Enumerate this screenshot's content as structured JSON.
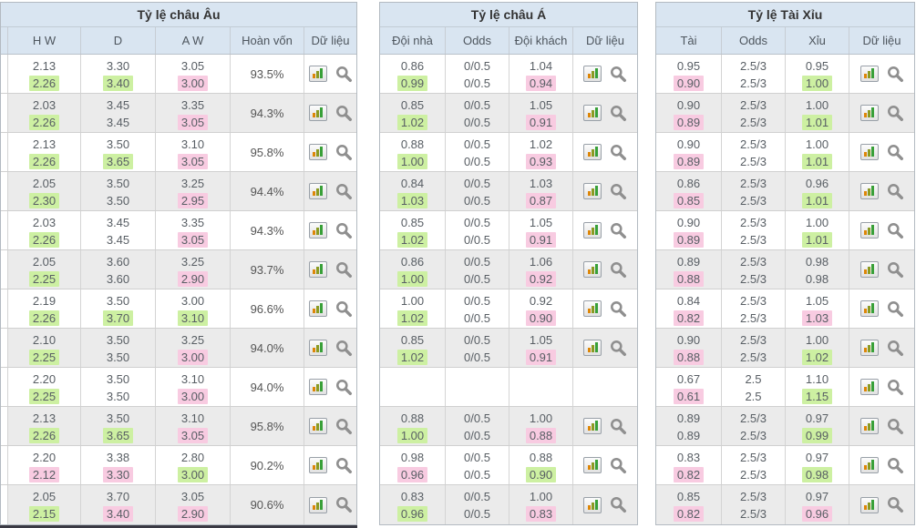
{
  "colors": {
    "header_bg": "#d9e5f1",
    "green_highlight": "#cdf0a2",
    "pink_highlight": "#f8cbe1",
    "zebra_row": "#ebebeb",
    "footer_bar": "#3a3a44"
  },
  "icons": {
    "chart": "bar-chart-icon",
    "search": "magnifier-icon"
  },
  "tables": [
    {
      "title": "Tỷ lệ châu Âu",
      "columns": [
        "",
        "H W",
        "D",
        "A W",
        "Hoàn vốn",
        "Dữ liệu"
      ],
      "rows": [
        {
          "odds": [
            [
              "2.13",
              "2.26",
              "g"
            ],
            [
              "3.30",
              "3.40",
              "g"
            ],
            [
              "3.05",
              "3.00",
              "p"
            ]
          ],
          "payout": "93.5%",
          "empty": false
        },
        {
          "odds": [
            [
              "2.03",
              "2.26",
              "g"
            ],
            [
              "3.45",
              "3.45",
              "n"
            ],
            [
              "3.35",
              "3.05",
              "p"
            ]
          ],
          "payout": "94.3%",
          "empty": false
        },
        {
          "odds": [
            [
              "2.13",
              "2.26",
              "g"
            ],
            [
              "3.50",
              "3.65",
              "g"
            ],
            [
              "3.10",
              "3.05",
              "p"
            ]
          ],
          "payout": "95.8%",
          "empty": false
        },
        {
          "odds": [
            [
              "2.05",
              "2.30",
              "g"
            ],
            [
              "3.50",
              "3.50",
              "n"
            ],
            [
              "3.25",
              "2.95",
              "p"
            ]
          ],
          "payout": "94.4%",
          "empty": false
        },
        {
          "odds": [
            [
              "2.03",
              "2.26",
              "g"
            ],
            [
              "3.45",
              "3.45",
              "n"
            ],
            [
              "3.35",
              "3.05",
              "p"
            ]
          ],
          "payout": "94.3%",
          "empty": false
        },
        {
          "odds": [
            [
              "2.05",
              "2.25",
              "g"
            ],
            [
              "3.60",
              "3.60",
              "n"
            ],
            [
              "3.25",
              "2.90",
              "p"
            ]
          ],
          "payout": "93.7%",
          "empty": false
        },
        {
          "odds": [
            [
              "2.19",
              "2.26",
              "g"
            ],
            [
              "3.50",
              "3.70",
              "g"
            ],
            [
              "3.00",
              "3.10",
              "g"
            ]
          ],
          "payout": "96.6%",
          "empty": false
        },
        {
          "odds": [
            [
              "2.10",
              "2.25",
              "g"
            ],
            [
              "3.50",
              "3.50",
              "n"
            ],
            [
              "3.25",
              "3.00",
              "p"
            ]
          ],
          "payout": "94.0%",
          "empty": false
        },
        {
          "odds": [
            [
              "2.20",
              "2.25",
              "g"
            ],
            [
              "3.50",
              "3.50",
              "n"
            ],
            [
              "3.10",
              "3.00",
              "p"
            ]
          ],
          "payout": "94.0%",
          "empty": false
        },
        {
          "odds": [
            [
              "2.13",
              "2.26",
              "g"
            ],
            [
              "3.50",
              "3.65",
              "g"
            ],
            [
              "3.10",
              "3.05",
              "p"
            ]
          ],
          "payout": "95.8%",
          "empty": false
        },
        {
          "odds": [
            [
              "2.20",
              "2.12",
              "p"
            ],
            [
              "3.38",
              "3.30",
              "p"
            ],
            [
              "2.80",
              "3.00",
              "g"
            ]
          ],
          "payout": "90.2%",
          "empty": false
        },
        {
          "odds": [
            [
              "2.05",
              "2.15",
              "g"
            ],
            [
              "3.70",
              "3.40",
              "p"
            ],
            [
              "3.05",
              "2.90",
              "p"
            ]
          ],
          "payout": "90.6%",
          "empty": false
        }
      ]
    },
    {
      "title": "Tỷ lệ châu Á",
      "columns": [
        "Đội nhà",
        "Odds",
        "Đội khách",
        "Dữ liệu"
      ],
      "rows": [
        {
          "odds": [
            [
              "0.86",
              "0.99",
              "g"
            ],
            [
              "0/0.5",
              "0/0.5",
              "n"
            ],
            [
              "1.04",
              "0.94",
              "p"
            ]
          ],
          "empty": false
        },
        {
          "odds": [
            [
              "0.85",
              "1.02",
              "g"
            ],
            [
              "0/0.5",
              "0/0.5",
              "n"
            ],
            [
              "1.05",
              "0.91",
              "p"
            ]
          ],
          "empty": false
        },
        {
          "odds": [
            [
              "0.88",
              "1.00",
              "g"
            ],
            [
              "0/0.5",
              "0/0.5",
              "n"
            ],
            [
              "1.02",
              "0.93",
              "p"
            ]
          ],
          "empty": false
        },
        {
          "odds": [
            [
              "0.84",
              "1.03",
              "g"
            ],
            [
              "0/0.5",
              "0/0.5",
              "n"
            ],
            [
              "1.03",
              "0.87",
              "p"
            ]
          ],
          "empty": false
        },
        {
          "odds": [
            [
              "0.85",
              "1.02",
              "g"
            ],
            [
              "0/0.5",
              "0/0.5",
              "n"
            ],
            [
              "1.05",
              "0.91",
              "p"
            ]
          ],
          "empty": false
        },
        {
          "odds": [
            [
              "0.86",
              "1.00",
              "g"
            ],
            [
              "0/0.5",
              "0/0.5",
              "n"
            ],
            [
              "1.06",
              "0.92",
              "p"
            ]
          ],
          "empty": false
        },
        {
          "odds": [
            [
              "1.00",
              "1.02",
              "g"
            ],
            [
              "0/0.5",
              "0/0.5",
              "n"
            ],
            [
              "0.92",
              "0.90",
              "p"
            ]
          ],
          "empty": false
        },
        {
          "odds": [
            [
              "0.85",
              "1.02",
              "g"
            ],
            [
              "0/0.5",
              "0/0.5",
              "n"
            ],
            [
              "1.05",
              "0.91",
              "p"
            ]
          ],
          "empty": false
        },
        {
          "odds": [],
          "empty": true
        },
        {
          "odds": [
            [
              "0.88",
              "1.00",
              "g"
            ],
            [
              "0/0.5",
              "0/0.5",
              "n"
            ],
            [
              "1.00",
              "0.88",
              "p"
            ]
          ],
          "empty": false
        },
        {
          "odds": [
            [
              "0.98",
              "0.96",
              "p"
            ],
            [
              "0/0.5",
              "0/0.5",
              "n"
            ],
            [
              "0.88",
              "0.90",
              "g"
            ]
          ],
          "empty": false
        },
        {
          "odds": [
            [
              "0.83",
              "0.96",
              "g"
            ],
            [
              "0/0.5",
              "0/0.5",
              "n"
            ],
            [
              "1.00",
              "0.83",
              "p"
            ]
          ],
          "empty": false
        }
      ]
    },
    {
      "title": "Tỷ lệ Tài Xỉu",
      "columns": [
        "Tài",
        "Odds",
        "Xỉu",
        "Dữ liệu"
      ],
      "rows": [
        {
          "odds": [
            [
              "0.95",
              "0.90",
              "p"
            ],
            [
              "2.5/3",
              "2.5/3",
              "n"
            ],
            [
              "0.95",
              "1.00",
              "g"
            ]
          ],
          "empty": false
        },
        {
          "odds": [
            [
              "0.90",
              "0.89",
              "p"
            ],
            [
              "2.5/3",
              "2.5/3",
              "n"
            ],
            [
              "1.00",
              "1.01",
              "g"
            ]
          ],
          "empty": false
        },
        {
          "odds": [
            [
              "0.90",
              "0.89",
              "p"
            ],
            [
              "2.5/3",
              "2.5/3",
              "n"
            ],
            [
              "1.00",
              "1.01",
              "g"
            ]
          ],
          "empty": false
        },
        {
          "odds": [
            [
              "0.86",
              "0.85",
              "p"
            ],
            [
              "2.5/3",
              "2.5/3",
              "n"
            ],
            [
              "0.96",
              "1.01",
              "g"
            ]
          ],
          "empty": false
        },
        {
          "odds": [
            [
              "0.90",
              "0.89",
              "p"
            ],
            [
              "2.5/3",
              "2.5/3",
              "n"
            ],
            [
              "1.00",
              "1.01",
              "g"
            ]
          ],
          "empty": false
        },
        {
          "odds": [
            [
              "0.89",
              "0.88",
              "p"
            ],
            [
              "2.5/3",
              "2.5/3",
              "n"
            ],
            [
              "0.98",
              "0.98",
              "n"
            ]
          ],
          "empty": false
        },
        {
          "odds": [
            [
              "0.84",
              "0.82",
              "p"
            ],
            [
              "2.5/3",
              "2.5/3",
              "n"
            ],
            [
              "1.05",
              "1.03",
              "p"
            ]
          ],
          "empty": false
        },
        {
          "odds": [
            [
              "0.90",
              "0.88",
              "p"
            ],
            [
              "2.5/3",
              "2.5/3",
              "n"
            ],
            [
              "1.00",
              "1.02",
              "g"
            ]
          ],
          "empty": false
        },
        {
          "odds": [
            [
              "0.67",
              "0.61",
              "p"
            ],
            [
              "2.5",
              "2.5",
              "n"
            ],
            [
              "1.10",
              "1.15",
              "g"
            ]
          ],
          "empty": false
        },
        {
          "odds": [
            [
              "0.89",
              "0.89",
              "n"
            ],
            [
              "2.5/3",
              "2.5/3",
              "n"
            ],
            [
              "0.97",
              "0.99",
              "g"
            ]
          ],
          "empty": false
        },
        {
          "odds": [
            [
              "0.83",
              "0.82",
              "p"
            ],
            [
              "2.5/3",
              "2.5/3",
              "n"
            ],
            [
              "0.97",
              "0.98",
              "g"
            ]
          ],
          "empty": false
        },
        {
          "odds": [
            [
              "0.85",
              "0.82",
              "p"
            ],
            [
              "2.5/3",
              "2.5/3",
              "n"
            ],
            [
              "0.97",
              "0.96",
              "p"
            ]
          ],
          "empty": false
        }
      ]
    }
  ]
}
